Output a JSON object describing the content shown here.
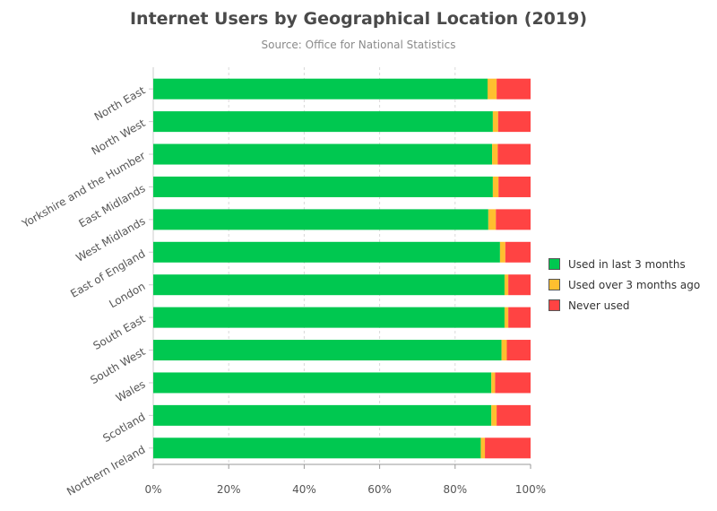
{
  "title": "Internet Users by Geographical Location (2019)",
  "subtitle": "Source: Office for National Statistics",
  "chart_data": {
    "type": "bar",
    "orientation": "horizontal",
    "stacked": true,
    "categories": [
      "North East",
      "North West",
      "Yorkshire and the Humber",
      "East Midlands",
      "West Midlands",
      "East of England",
      "London",
      "South East",
      "South West",
      "Wales",
      "Scotland",
      "Northern Ireland"
    ],
    "series": [
      {
        "name": "Used in last 3 months",
        "color": "#00c850",
        "values": [
          88.6,
          90.0,
          89.8,
          90.0,
          88.8,
          91.9,
          93.1,
          93.1,
          92.3,
          89.6,
          89.6,
          86.8
        ]
      },
      {
        "name": "Used over 3 months ago",
        "color": "#ffbf2f",
        "values": [
          2.4,
          1.4,
          1.5,
          1.5,
          2.0,
          1.4,
          1.0,
          1.0,
          1.4,
          1.0,
          1.4,
          1.1
        ]
      },
      {
        "name": "Never used",
        "color": "#ff4343",
        "values": [
          9.0,
          8.6,
          8.7,
          8.5,
          9.2,
          6.7,
          5.9,
          5.9,
          6.3,
          9.4,
          9.0,
          12.1
        ]
      }
    ],
    "xticks": [
      "0%",
      "20%",
      "40%",
      "60%",
      "80%",
      "100%"
    ],
    "xlim": [
      0,
      100
    ],
    "grid": true,
    "legend_position": "right"
  }
}
